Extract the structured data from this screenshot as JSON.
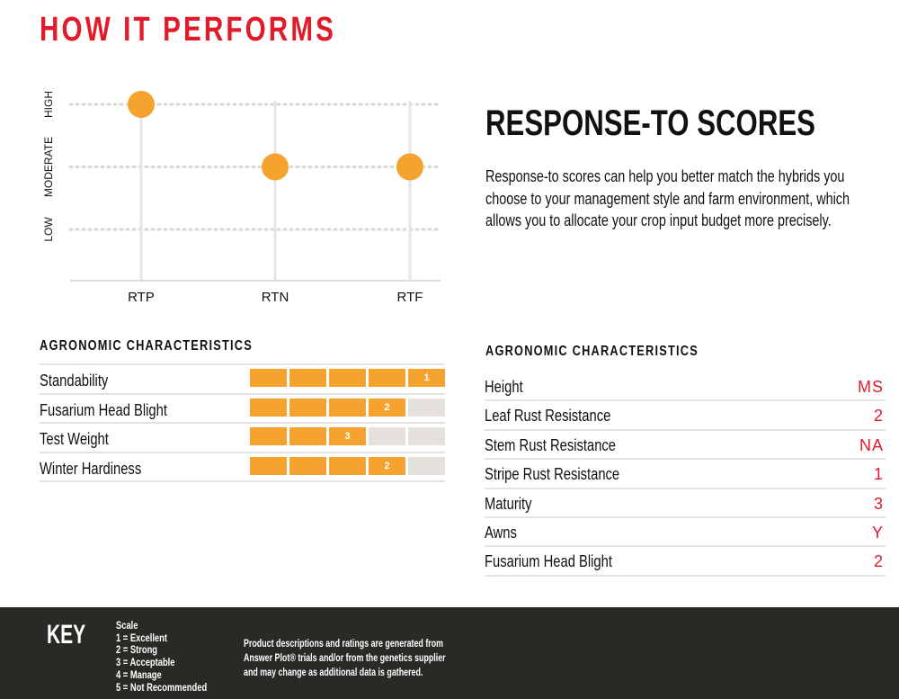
{
  "page": {
    "title": "HOW IT PERFORMS"
  },
  "chart_data": {
    "type": "scatter",
    "categories": [
      "RTP",
      "RTN",
      "RTF"
    ],
    "levels": [
      "LOW",
      "MODERATE",
      "HIGH"
    ],
    "values": [
      3,
      2,
      2
    ],
    "point_color": "#f6a22f",
    "grid": true
  },
  "response_to": {
    "title": "RESPONSE-TO SCORES",
    "body": "Response-to scores can help you better match the hybrids you choose to your management style and farm environment, which allows you to allocate your crop input budget more precisely."
  },
  "left_table": {
    "heading": "AGRONOMIC CHARACTERISTICS",
    "max_score": 5,
    "rows": [
      {
        "label": "Standability",
        "score": 1
      },
      {
        "label": "Fusarium Head Blight",
        "score": 2
      },
      {
        "label": "Test Weight",
        "score": 3
      },
      {
        "label": "Winter Hardiness",
        "score": 2
      }
    ]
  },
  "right_table": {
    "heading": "AGRONOMIC CHARACTERISTICS",
    "rows": [
      {
        "label": "Height",
        "value": "MS"
      },
      {
        "label": "Leaf Rust Resistance",
        "value": "2"
      },
      {
        "label": "Stem Rust Resistance",
        "value": "NA"
      },
      {
        "label": "Stripe Rust Resistance",
        "value": "1"
      },
      {
        "label": "Maturity",
        "value": "3"
      },
      {
        "label": "Awns",
        "value": "Y"
      },
      {
        "label": "Fusarium Head Blight",
        "value": "2"
      }
    ]
  },
  "footer": {
    "key_title": "KEY",
    "scale_title": "Scale",
    "scale_items": [
      "1 = Excellent",
      "2 = Strong",
      "3 = Acceptable",
      "4 = Manage",
      "5 = Not Recommended"
    ],
    "disclaimer_1": "Product descriptions and ratings are generated from",
    "disclaimer_2": "Answer Plot® trials and/or from the genetics supplier",
    "disclaimer_3": "and may change as additional data is gathered."
  },
  "colors": {
    "accent_red": "#e11b2a",
    "accent_orange": "#f6a22f",
    "footer_bg": "#2b2926"
  }
}
